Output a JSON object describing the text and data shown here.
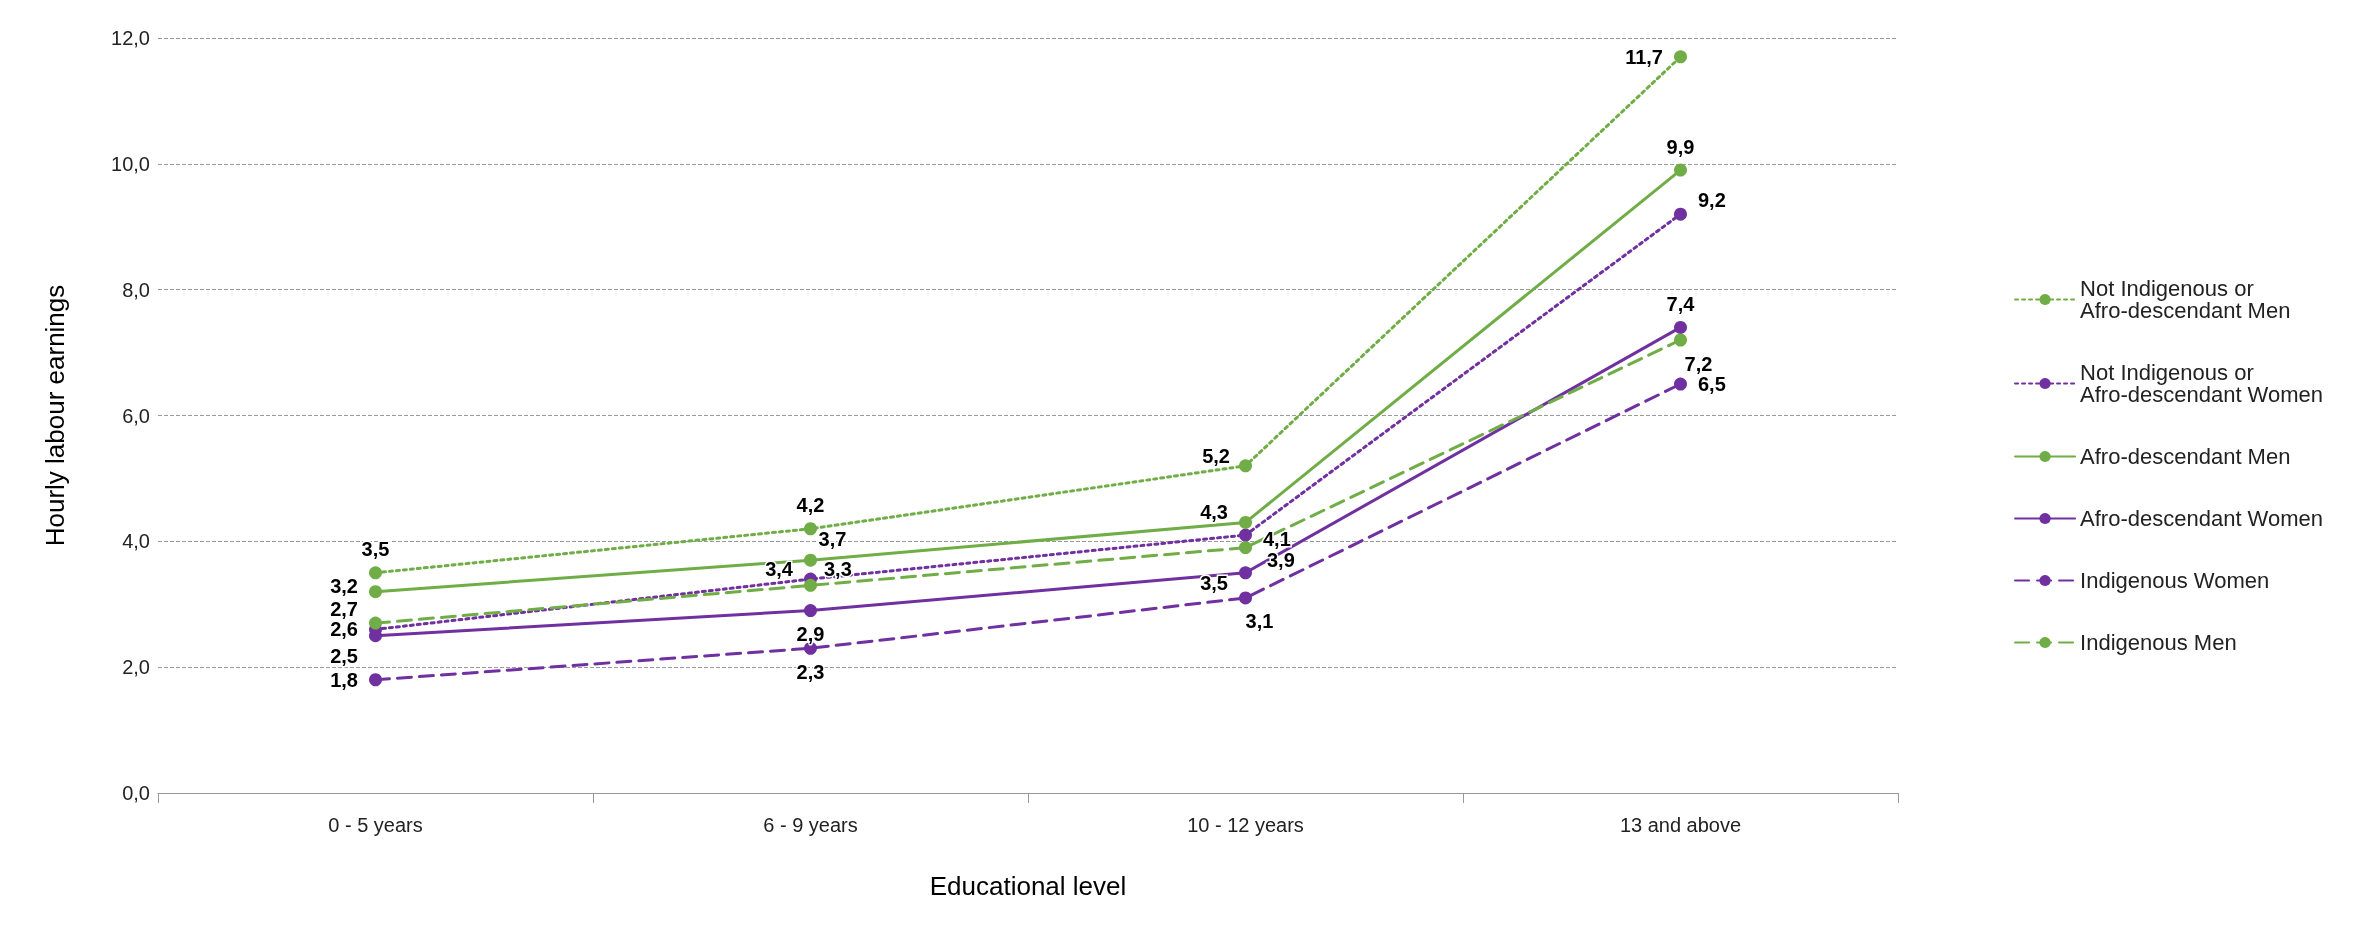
{
  "chart_data": {
    "type": "line",
    "xlabel": "Educational level",
    "ylabel": "Hourly labour earnings",
    "categories": [
      "0 - 5 years",
      "6 - 9 years",
      "10 - 12 years",
      "13 and above"
    ],
    "ylim": [
      0,
      12
    ],
    "yticks": [
      {
        "value": 0,
        "label": "0,0"
      },
      {
        "value": 2,
        "label": "2,0"
      },
      {
        "value": 4,
        "label": "4,0"
      },
      {
        "value": 6,
        "label": "6,0"
      },
      {
        "value": 8,
        "label": "8,0"
      },
      {
        "value": 10,
        "label": "10,0"
      },
      {
        "value": 12,
        "label": "12,0"
      }
    ],
    "grid": "y",
    "legend": "right",
    "marker": "circle",
    "series": [
      {
        "name": "Not Indigenous or Afro-descendant Men",
        "color": "#70ad47",
        "line_style": "dotted",
        "values": [
          3.5,
          4.2,
          5.2,
          11.7
        ],
        "value_labels": [
          "3,5",
          "4,2",
          "5,2",
          "11,7"
        ]
      },
      {
        "name": "Not Indigenous or Afro-descendant Women",
        "color": "#7030a0",
        "line_style": "dotted",
        "values": [
          2.6,
          3.4,
          4.1,
          9.2
        ],
        "value_labels": [
          "2,6",
          "3,4",
          "4,1",
          "9,2"
        ]
      },
      {
        "name": "Afro-descendant Men",
        "color": "#70ad47",
        "line_style": "solid",
        "values": [
          3.2,
          3.7,
          4.3,
          9.9
        ],
        "value_labels": [
          "3,2",
          "3,7",
          "4,3",
          "9,9"
        ]
      },
      {
        "name": "Afro-descendant Women",
        "color": "#7030a0",
        "line_style": "solid",
        "values": [
          2.5,
          2.9,
          3.5,
          7.4
        ],
        "value_labels": [
          "2,5",
          "2,9",
          "3,5",
          "7,4"
        ]
      },
      {
        "name": "Indigenous Women",
        "color": "#7030a0",
        "line_style": "dashed",
        "values": [
          1.8,
          2.3,
          3.1,
          6.5
        ],
        "value_labels": [
          "1,8",
          "2,3",
          "3,1",
          "6,5"
        ]
      },
      {
        "name": "Indigenous Men",
        "color": "#70ad47",
        "line_style": "dashed",
        "values": [
          2.7,
          3.3,
          3.9,
          7.2
        ],
        "value_labels": [
          "2,7",
          "3,3",
          "3,9",
          "7,2"
        ]
      }
    ]
  }
}
